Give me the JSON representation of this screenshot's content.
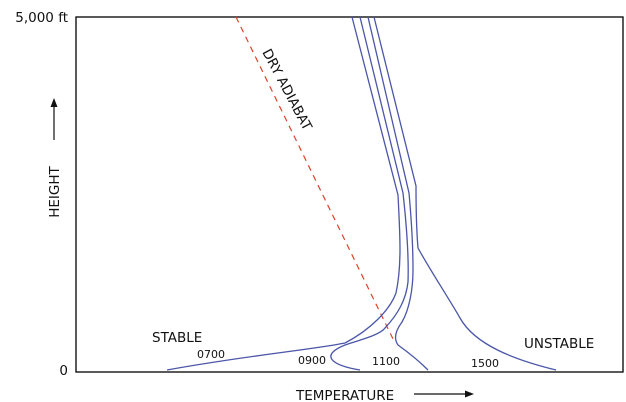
{
  "axes": {
    "y_top_label": "5,000 ft",
    "y_bottom_label": "0",
    "y_title": "HEIGHT",
    "x_title": "TEMPERATURE"
  },
  "regions": {
    "left": "STABLE",
    "right": "UNSTABLE"
  },
  "reference_line": {
    "label": "DRY ADIABAT",
    "color": "#d9442a",
    "style": "dashed"
  },
  "profiles": [
    {
      "time": "0700"
    },
    {
      "time": "0900"
    },
    {
      "time": "1100"
    },
    {
      "time": "1500"
    }
  ],
  "colors": {
    "profile_line": "#4a56a8",
    "frame": "#000000"
  }
}
